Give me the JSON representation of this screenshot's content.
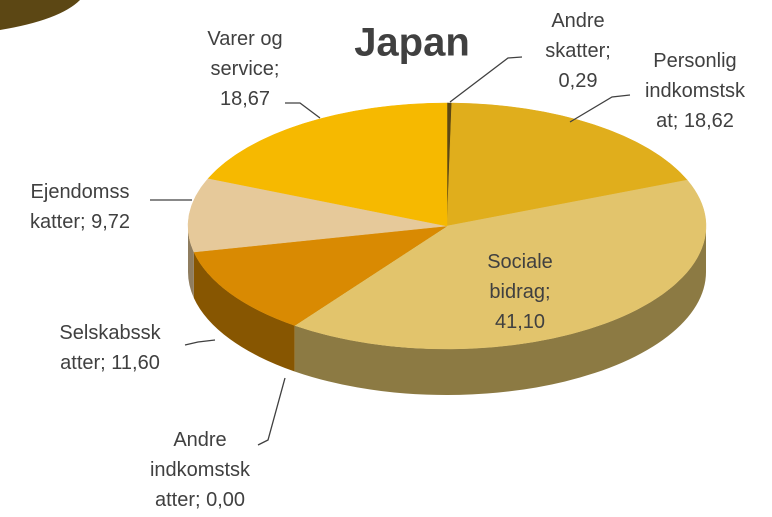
{
  "chart_data": {
    "type": "pie",
    "title": "Japan",
    "values": [
      0.29,
      18.62,
      41.1,
      0.0,
      11.6,
      9.72,
      18.67
    ],
    "value_labels": [
      "Andre skatter; 0,29",
      "Personlig indkomstskat; 18,62",
      "Sociale bidrag; 41,10",
      "Andre indkomstskatter; 0,00",
      "Selskabsskatter; 11,60",
      "Ejendomsskatter; 9,72",
      "Varer og service; 18,67"
    ],
    "colors": [
      "#5c4714",
      "#e0ae1c",
      "#e2c46c",
      "#c8901a",
      "#d98a02",
      "#e6c99a",
      "#f6b900"
    ]
  }
}
